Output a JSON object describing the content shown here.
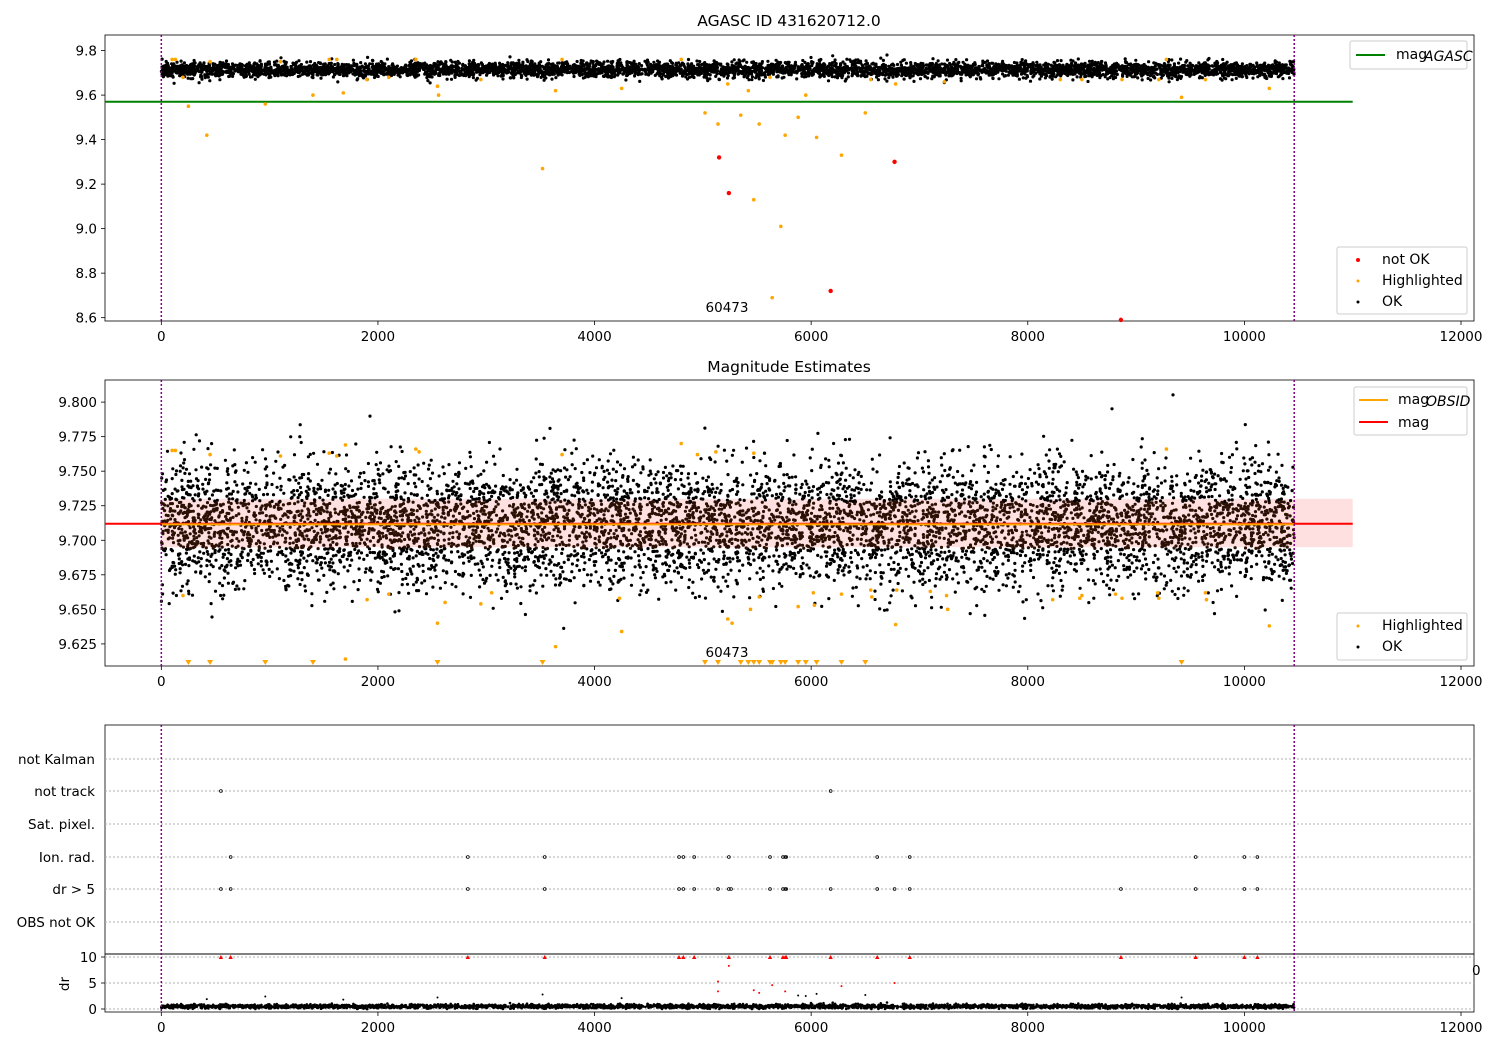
{
  "figure": {
    "panels": {
      "top": {
        "title": "AGASC ID 431620712.0",
        "annotation": "60473"
      },
      "middle": {
        "title": "Magnitude Estimates",
        "annotation": "60473"
      },
      "bottom": {
        "ylabel": "dr",
        "stray_tick": "0"
      }
    }
  },
  "colors": {
    "ok": "#000000",
    "highlighted": "#ffa500",
    "not_ok": "#ff0000",
    "mag_agasc": "#008000",
    "mag_obsid": "#ffa500",
    "mag": "#ff0000",
    "mag_band": "#ffd5d5",
    "obs_boundary": "#800080",
    "flag_grid": "#b0b0b0"
  },
  "chart_data": [
    {
      "type": "scatter",
      "title": "AGASC ID 431620712.0",
      "xlabel": "",
      "ylabel": "",
      "xlim": [
        -520,
        12120
      ],
      "ylim": [
        8.585,
        9.87
      ],
      "x_ticks": [
        0,
        2000,
        4000,
        6000,
        8000,
        10000,
        12000
      ],
      "y_ticks": [
        8.6,
        8.8,
        9.0,
        9.2,
        9.4,
        9.6,
        9.8
      ],
      "y_tick_labels": [
        "8.6",
        "8.8",
        "9.0",
        "9.2",
        "9.4",
        "9.6",
        "9.8"
      ],
      "legend": [
        "mag_AGASC",
        "not OK",
        "Highlighted",
        "OK"
      ],
      "legend_placement": [
        "top-right",
        "bottom-right"
      ],
      "lines": [
        {
          "name": "mag_AGASC",
          "y": 9.57,
          "x_range": [
            -520,
            11000
          ]
        }
      ],
      "vlines": [
        0,
        10460
      ],
      "annotations": [
        {
          "text": "60473",
          "x": 5200,
          "y": 8.65
        }
      ],
      "ok_band": {
        "x_range": [
          0,
          10460
        ],
        "center": 9.714,
        "spread": 0.035,
        "count": 5200
      },
      "series": [
        {
          "name": "Highlighted",
          "points": [
            [
              100,
              9.76
            ],
            [
              130,
              9.76
            ],
            [
              250,
              9.55
            ],
            [
              420,
              9.42
            ],
            [
              450,
              9.75
            ],
            [
              960,
              9.56
            ],
            [
              1100,
              9.75
            ],
            [
              1400,
              9.6
            ],
            [
              1550,
              9.76
            ],
            [
              1620,
              9.76
            ],
            [
              1680,
              9.61
            ],
            [
              1900,
              9.67
            ],
            [
              2100,
              9.68
            ],
            [
              2350,
              9.76
            ],
            [
              2550,
              9.64
            ],
            [
              2560,
              9.6
            ],
            [
              2950,
              9.67
            ],
            [
              3520,
              9.27
            ],
            [
              3640,
              9.62
            ],
            [
              3700,
              9.76
            ],
            [
              4250,
              9.63
            ],
            [
              4800,
              9.76
            ],
            [
              5020,
              9.52
            ],
            [
              5140,
              9.47
            ],
            [
              5230,
              9.65
            ],
            [
              5350,
              9.51
            ],
            [
              5420,
              9.62
            ],
            [
              5520,
              9.47
            ],
            [
              5620,
              9.68
            ],
            [
              5640,
              8.69
            ],
            [
              5760,
              9.42
            ],
            [
              5880,
              9.5
            ],
            [
              5950,
              9.6
            ],
            [
              6050,
              9.41
            ],
            [
              6280,
              9.33
            ],
            [
              6500,
              9.52
            ],
            [
              6550,
              9.67
            ],
            [
              6780,
              9.65
            ],
            [
              7230,
              9.66
            ],
            [
              8300,
              9.67
            ],
            [
              8500,
              9.67
            ],
            [
              8870,
              9.67
            ],
            [
              9210,
              9.67
            ],
            [
              9280,
              9.76
            ],
            [
              9420,
              9.59
            ],
            [
              9640,
              9.67
            ],
            [
              10230,
              9.63
            ],
            [
              5470,
              9.13
            ],
            [
              5720,
              9.01
            ],
            [
              200,
              9.68
            ]
          ]
        },
        {
          "name": "not OK",
          "points": [
            [
              5150,
              9.32
            ],
            [
              5240,
              9.16
            ],
            [
              6180,
              8.72
            ],
            [
              6770,
              9.3
            ],
            [
              8860,
              8.59
            ]
          ]
        }
      ]
    },
    {
      "type": "scatter",
      "title": "Magnitude Estimates",
      "xlabel": "",
      "ylabel": "",
      "xlim": [
        -520,
        12120
      ],
      "ylim": [
        9.609,
        9.816
      ],
      "x_ticks": [
        0,
        2000,
        4000,
        6000,
        8000,
        10000,
        12000
      ],
      "y_ticks": [
        9.625,
        9.65,
        9.675,
        9.7,
        9.725,
        9.75,
        9.775,
        9.8
      ],
      "y_tick_labels": [
        "9.625",
        "9.650",
        "9.675",
        "9.700",
        "9.725",
        "9.750",
        "9.775",
        "9.800"
      ],
      "legend": [
        "mag_OBSID",
        "mag",
        "Highlighted",
        "OK"
      ],
      "legend_placement": [
        "top-right",
        "bottom-right"
      ],
      "lines": [
        {
          "name": "mag",
          "y": 9.712,
          "x_range": [
            -520,
            11000
          ]
        },
        {
          "name": "mag_OBSID",
          "y": 9.7115,
          "x_range": [
            0,
            10460
          ]
        }
      ],
      "mag_band": {
        "y_range": [
          9.695,
          9.73
        ],
        "x_range": [
          0,
          11000
        ]
      },
      "vlines": [
        0,
        10460
      ],
      "annotations": [
        {
          "text": "60473",
          "x": 5200,
          "y": 9.617
        }
      ],
      "ok_band": {
        "x_range": [
          0,
          10460
        ],
        "center": 9.711,
        "spread": 0.022,
        "count": 7000
      },
      "series": [
        {
          "name": "Highlighted",
          "points": [
            [
              100,
              9.765
            ],
            [
              130,
              9.765
            ],
            [
              450,
              9.762
            ],
            [
              1100,
              9.761
            ],
            [
              1550,
              9.763
            ],
            [
              1620,
              9.761
            ],
            [
              1700,
              9.769
            ],
            [
              2350,
              9.766
            ],
            [
              2380,
              9.764
            ],
            [
              3700,
              9.762
            ],
            [
              4800,
              9.77
            ],
            [
              4950,
              9.762
            ],
            [
              5120,
              9.764
            ],
            [
              5470,
              9.763
            ],
            [
              9280,
              9.766
            ],
            [
              200,
              9.66
            ],
            [
              1900,
              9.657
            ],
            [
              2100,
              9.661
            ],
            [
              2550,
              9.64
            ],
            [
              2620,
              9.655
            ],
            [
              2950,
              9.654
            ],
            [
              3050,
              9.662
            ],
            [
              3640,
              9.623
            ],
            [
              4230,
              9.658
            ],
            [
              4250,
              9.634
            ],
            [
              5230,
              9.643
            ],
            [
              5270,
              9.64
            ],
            [
              5440,
              9.65
            ],
            [
              5520,
              9.659
            ],
            [
              5880,
              9.652
            ],
            [
              6020,
              9.662
            ],
            [
              6030,
              9.653
            ],
            [
              6280,
              9.661
            ],
            [
              6550,
              9.664
            ],
            [
              6560,
              9.659
            ],
            [
              6780,
              9.639
            ],
            [
              6790,
              9.664
            ],
            [
              7100,
              9.663
            ],
            [
              7250,
              9.66
            ],
            [
              7260,
              9.65
            ],
            [
              8230,
              9.657
            ],
            [
              8480,
              9.658
            ],
            [
              8500,
              9.66
            ],
            [
              8810,
              9.661
            ],
            [
              8870,
              9.658
            ],
            [
              9200,
              9.662
            ],
            [
              9210,
              9.658
            ],
            [
              9640,
              9.662
            ],
            [
              9650,
              9.657
            ],
            [
              10230,
              9.638
            ],
            [
              1700,
              9.614
            ]
          ],
          "lower_limits": [
            250,
            450,
            960,
            1400,
            2550,
            3520,
            5020,
            5140,
            5350,
            5420,
            5470,
            5520,
            5620,
            5640,
            5720,
            5760,
            5880,
            5950,
            6050,
            6280,
            6500,
            9420
          ]
        }
      ]
    },
    {
      "type": "scatter",
      "title": "",
      "xlabel": "",
      "ylabel": "dr",
      "xlim": [
        -520,
        12120
      ],
      "ylim": [
        -0.6,
        10.6
      ],
      "x_ticks": [
        0,
        2000,
        4000,
        6000,
        8000,
        10000,
        12000
      ],
      "y_ticks": [
        0,
        5,
        10
      ],
      "flag_rows": [
        "not Kalman",
        "not track",
        "Sat. pixel.",
        "Ion. rad.",
        "dr > 5",
        "OBS not OK"
      ],
      "vlines": [
        0,
        10460
      ],
      "flags": [
        {
          "name": "not track",
          "x": [
            550,
            6180
          ]
        },
        {
          "name": "Ion. rad.",
          "x": [
            640,
            2830,
            3540,
            4780,
            4820,
            4920,
            5240,
            5620,
            5740,
            5760,
            5770,
            6610,
            6910,
            9550,
            10000,
            10120
          ]
        },
        {
          "name": "dr > 5",
          "x": [
            550,
            640,
            2830,
            3540,
            4780,
            4820,
            4920,
            5140,
            5240,
            5260,
            5620,
            5740,
            5760,
            5770,
            6180,
            6610,
            6770,
            6910,
            8860,
            9550,
            10000,
            10120
          ]
        }
      ],
      "dr_clipped": [
        550,
        640,
        2830,
        3540,
        4780,
        4820,
        4920,
        5240,
        5620,
        5740,
        5760,
        5770,
        6180,
        6610,
        6910,
        8860,
        9550,
        10000,
        10120
      ],
      "dr_outliers": [
        [
          5140,
          5.3
        ],
        [
          5140,
          3.4
        ],
        [
          5240,
          8.3
        ],
        [
          5470,
          3.6
        ],
        [
          5520,
          3.1
        ],
        [
          5640,
          4.6
        ],
        [
          5760,
          3.4
        ],
        [
          6280,
          4.4
        ],
        [
          6770,
          5.0
        ],
        [
          3520,
          2.8
        ],
        [
          960,
          2.4
        ],
        [
          2550,
          2.2
        ],
        [
          4250,
          2.1
        ],
        [
          6500,
          2.7
        ],
        [
          5950,
          2.5
        ],
        [
          5880,
          2.6
        ],
        [
          6050,
          2.9
        ],
        [
          9420,
          2.2
        ],
        [
          420,
          1.9
        ],
        [
          1680,
          1.8
        ]
      ],
      "ok_band": {
        "x_range": [
          0,
          10460
        ],
        "center": 0.5,
        "spread": 0.4,
        "count": 3500
      }
    }
  ]
}
